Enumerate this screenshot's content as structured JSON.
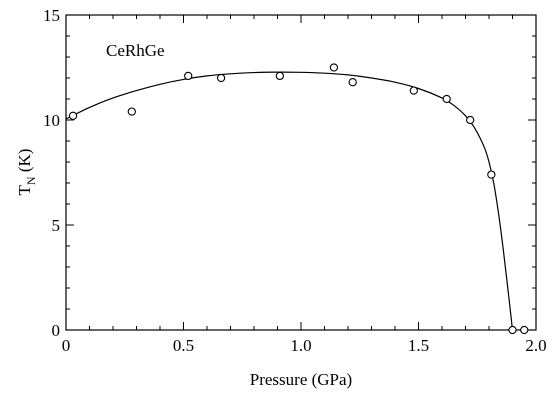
{
  "chart_data": {
    "type": "scatter",
    "annotation": "CeRhGe",
    "xlabel": "Pressure (GPa)",
    "ylabel_main": "T",
    "ylabel_sub": "N",
    "ylabel_unit": " (K)",
    "xlim": [
      0,
      2.0
    ],
    "ylim": [
      0,
      15
    ],
    "xticks": [
      0,
      0.5,
      1.0,
      1.5,
      2.0
    ],
    "xtick_labels": [
      "0",
      "0.5",
      "1.0",
      "1.5",
      "2.0"
    ],
    "yticks": [
      0,
      5,
      10,
      15
    ],
    "ytick_labels": [
      "0",
      "5",
      "10",
      "15"
    ],
    "x_minor_step": 0.1,
    "y_minor_step": 1,
    "grid": false,
    "legend": "none",
    "series": [
      {
        "kind": "points",
        "marker": "open-circle",
        "x": [
          0.03,
          0.28,
          0.52,
          0.66,
          0.91,
          1.14,
          1.22,
          1.48,
          1.62,
          1.72,
          1.81,
          1.9,
          1.95
        ],
        "y": [
          10.2,
          10.4,
          12.1,
          12.0,
          12.1,
          12.5,
          11.8,
          11.4,
          11.0,
          10.0,
          7.4,
          0.0,
          0.0
        ]
      },
      {
        "kind": "fit-line",
        "x": [
          0.0,
          0.1,
          0.2,
          0.3,
          0.4,
          0.5,
          0.6,
          0.7,
          0.8,
          0.9,
          1.0,
          1.1,
          1.2,
          1.3,
          1.4,
          1.5,
          1.6,
          1.65,
          1.7,
          1.74,
          1.78,
          1.8,
          1.82,
          1.84,
          1.86,
          1.88,
          1.9
        ],
        "y": [
          10.05,
          10.6,
          11.05,
          11.4,
          11.7,
          11.93,
          12.1,
          12.2,
          12.26,
          12.28,
          12.27,
          12.23,
          12.15,
          12.0,
          11.8,
          11.5,
          11.05,
          10.7,
          10.2,
          9.6,
          8.7,
          8.0,
          7.0,
          5.6,
          3.9,
          2.0,
          0.0
        ]
      }
    ]
  }
}
